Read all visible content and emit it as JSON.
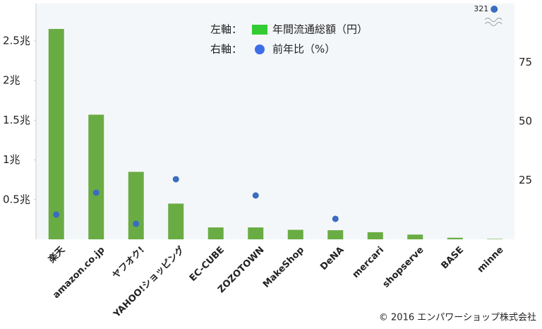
{
  "chart_data": {
    "type": "bar",
    "legend": {
      "left_label": "左軸：",
      "right_label": "右軸："
    },
    "categories": [
      "楽天",
      "amazon.co.jp",
      "ヤフオク!",
      "YAHOO!ショッピング",
      "EC-CUBE",
      "ZOZOTOWN",
      "MakeShop",
      "DeNA",
      "mercari",
      "shopserve",
      "BASE",
      "minne"
    ],
    "series": [
      {
        "name": "年間流通総額（円）",
        "color": "#33cc33",
        "bar_color": "#6aac44",
        "values": [
          2.65,
          1.57,
          0.85,
          0.45,
          0.15,
          0.15,
          0.12,
          0.115,
          0.09,
          0.06,
          0.02,
          0.005
        ]
      },
      {
        "name": "前年比（%）",
        "color": "#3d6ee8",
        "dot_color": "#3a6cc0",
        "axis": "y2",
        "values": [
          10.5,
          19.8,
          6.6,
          25.5,
          null,
          18.6,
          null,
          8.7,
          null,
          null,
          null,
          321
        ],
        "value_labels": [
          null,
          null,
          null,
          null,
          null,
          null,
          null,
          null,
          null,
          null,
          null,
          "321"
        ]
      }
    ],
    "ylim": [
      0,
      2.97
    ],
    "yticks": [
      {
        "value": 0.5,
        "label": "0.5兆"
      },
      {
        "value": 1,
        "label": "1兆"
      },
      {
        "value": 1.5,
        "label": "1.5兆"
      },
      {
        "value": 2,
        "label": "2兆"
      },
      {
        "value": 2.5,
        "label": "2.5兆"
      }
    ],
    "y2lim": [
      0,
      100
    ],
    "y2ticks": [
      25,
      50,
      75
    ],
    "copyright": "© 2016 エンパワーショップ株式会社"
  }
}
